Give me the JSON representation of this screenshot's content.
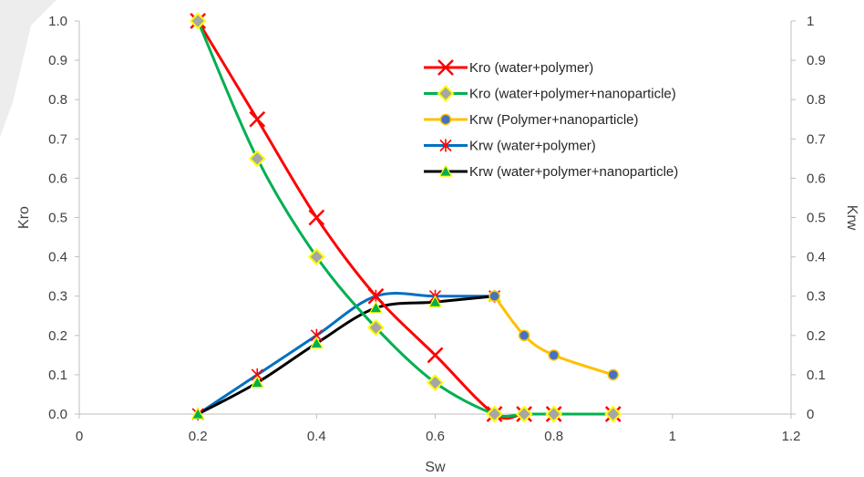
{
  "chart_data": {
    "type": "scatter",
    "xlabel": "Sw",
    "ylabel": "Kro",
    "y2label": "Krw",
    "xlim": [
      0,
      1.2
    ],
    "ylim": [
      0,
      1.0
    ],
    "y2lim": [
      0,
      1
    ],
    "xticks": [
      "0",
      "0.2",
      "0.4",
      "0.6",
      "0.8",
      "1",
      "1.2"
    ],
    "yticks": [
      "0.0",
      "0.1",
      "0.2",
      "0.3",
      "0.4",
      "0.5",
      "0.6",
      "0.7",
      "0.8",
      "0.9",
      "1.0"
    ],
    "y2ticks": [
      "0",
      "0.1",
      "0.2",
      "0.3",
      "0.4",
      "0.5",
      "0.6",
      "0.7",
      "0.8",
      "0.9",
      "1"
    ],
    "grid": false,
    "legend_position": "top-right",
    "series": [
      {
        "name": "Kro (water+polymer)",
        "color": "#ff0000",
        "marker": "x-icon",
        "x": [
          0.2,
          0.3,
          0.4,
          0.5,
          0.6,
          0.7,
          0.75,
          0.8,
          0.9
        ],
        "y": [
          1.0,
          0.75,
          0.5,
          0.3,
          0.15,
          0.0,
          0.0,
          0.0,
          0.0
        ]
      },
      {
        "name": "Kro (water+polymer+nanoparticle)",
        "color": "#00b050",
        "marker": "diamond-icon",
        "x": [
          0.2,
          0.3,
          0.4,
          0.5,
          0.6,
          0.7,
          0.75,
          0.8,
          0.9
        ],
        "y": [
          1.0,
          0.65,
          0.4,
          0.22,
          0.08,
          0.0,
          0.0,
          0.0,
          0.0
        ]
      },
      {
        "name": "Krw (Polymer+nanoparticle)",
        "color": "#ffc000",
        "marker": "circle-icon",
        "x": [
          0.7,
          0.75,
          0.8,
          0.9
        ],
        "y": [
          0.3,
          0.2,
          0.15,
          0.1
        ]
      },
      {
        "name": "Krw (water+polymer)",
        "color": "#0070c0",
        "marker": "star-icon",
        "x": [
          0.2,
          0.3,
          0.4,
          0.5,
          0.6,
          0.7
        ],
        "y": [
          0.0,
          0.1,
          0.2,
          0.3,
          0.3,
          0.3
        ]
      },
      {
        "name": "Krw (water+polymer+nanoparticle)",
        "color": "#000000",
        "marker": "triangle-icon",
        "x": [
          0.2,
          0.3,
          0.4,
          0.5,
          0.6,
          0.7
        ],
        "y": [
          0.0,
          0.08,
          0.18,
          0.27,
          0.285,
          0.3
        ]
      }
    ]
  }
}
